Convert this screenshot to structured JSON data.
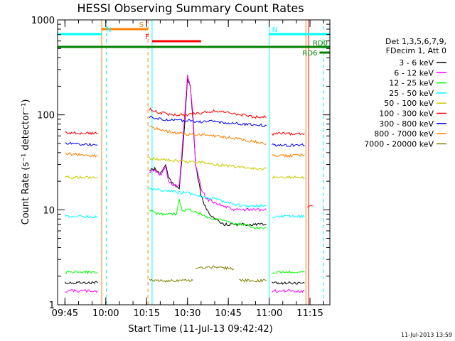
{
  "chart_data": {
    "type": "line",
    "title": "HESSI Observing Summary Count Rates",
    "xlabel": "Start Time (11-Jul-13 09:42:42)",
    "ylabel": "Count Rate (s⁻¹ detector⁻¹)",
    "yscale": "log",
    "ylim": [
      1,
      1000
    ],
    "xlim": [
      -2.7,
      97.3
    ],
    "x_units": "minutes after 09:45",
    "x_ticks": [
      {
        "x": 0,
        "label": "09:45"
      },
      {
        "x": 15,
        "label": "10:00"
      },
      {
        "x": 30,
        "label": "10:15"
      },
      {
        "x": 45,
        "label": "10:30"
      },
      {
        "x": 60,
        "label": "10:45"
      },
      {
        "x": 75,
        "label": "11:00"
      },
      {
        "x": 90,
        "label": "11:15"
      }
    ],
    "y_ticks": [
      {
        "y": 1,
        "label": "1"
      },
      {
        "y": 10,
        "label": "10"
      },
      {
        "y": 100,
        "label": "100"
      },
      {
        "y": 1000,
        "label": "1000"
      }
    ],
    "legend": {
      "position": "right",
      "header": [
        "Det 1,3,5,6,7,9,",
        "FDecim 1, Att 0"
      ]
    },
    "series": [
      {
        "name": "3 - 6 keV",
        "color": "#000000",
        "segments": [
          [
            [
              0,
              1.7
            ],
            [
              6,
              1.7
            ],
            [
              12,
              1.7
            ]
          ],
          [
            [
              31,
              26
            ],
            [
              33,
              27
            ],
            [
              35,
              24
            ],
            [
              37,
              30
            ],
            [
              38,
              22
            ],
            [
              40,
              18
            ],
            [
              42,
              17
            ],
            [
              44,
              80
            ],
            [
              45,
              240
            ],
            [
              46,
              200
            ],
            [
              47,
              90
            ],
            [
              48,
              30
            ],
            [
              50,
              14
            ],
            [
              52,
              10
            ],
            [
              55,
              8
            ],
            [
              58,
              7
            ],
            [
              62,
              7
            ],
            [
              66,
              7
            ],
            [
              70,
              7
            ],
            [
              74,
              7
            ]
          ],
          [
            [
              76,
              1.7
            ],
            [
              82,
              1.7
            ],
            [
              88,
              1.7
            ]
          ]
        ]
      },
      {
        "name": "6 - 12 keV",
        "color": "#ff00ff",
        "segments": [
          [
            [
              0,
              1.4
            ],
            [
              6,
              1.4
            ],
            [
              12,
              1.4
            ]
          ],
          [
            [
              31,
              25
            ],
            [
              33,
              26
            ],
            [
              35,
              23
            ],
            [
              37,
              28
            ],
            [
              38,
              20
            ],
            [
              40,
              18
            ],
            [
              42,
              18
            ],
            [
              44,
              100
            ],
            [
              45,
              260
            ],
            [
              46,
              200
            ],
            [
              47,
              100
            ],
            [
              48,
              30
            ],
            [
              50,
              17
            ],
            [
              52,
              13
            ],
            [
              55,
              12
            ],
            [
              58,
              11
            ],
            [
              62,
              10
            ],
            [
              66,
              10
            ],
            [
              70,
              10
            ],
            [
              74,
              10
            ]
          ],
          [
            [
              76,
              1.4
            ],
            [
              82,
              1.4
            ],
            [
              88,
              1.4
            ]
          ]
        ]
      },
      {
        "name": "12 - 25 keV",
        "color": "#00ff00",
        "segments": [
          [
            [
              0,
              2.2
            ],
            [
              6,
              2.2
            ],
            [
              12,
              2.2
            ]
          ],
          [
            [
              31,
              10
            ],
            [
              34,
              9
            ],
            [
              38,
              9
            ],
            [
              41,
              9
            ],
            [
              42,
              13
            ],
            [
              43,
              10
            ],
            [
              46,
              10
            ],
            [
              50,
              9
            ],
            [
              54,
              8
            ],
            [
              58,
              8
            ],
            [
              62,
              7
            ],
            [
              66,
              7
            ],
            [
              70,
              6.5
            ],
            [
              74,
              6.5
            ]
          ],
          [
            [
              76,
              2.2
            ],
            [
              82,
              2.2
            ],
            [
              88,
              2.2
            ]
          ]
        ]
      },
      {
        "name": "25 - 50 keV",
        "color": "#00ffff",
        "segments": [
          [
            [
              0,
              8.5
            ],
            [
              6,
              8.5
            ],
            [
              12,
              8.5
            ]
          ],
          [
            [
              31,
              17
            ],
            [
              35,
              16
            ],
            [
              40,
              15.5
            ],
            [
              45,
              15
            ],
            [
              50,
              14
            ],
            [
              55,
              13
            ],
            [
              60,
              12
            ],
            [
              65,
              11
            ],
            [
              70,
              11
            ],
            [
              74,
              11
            ]
          ],
          [
            [
              76,
              8.5
            ],
            [
              82,
              8.5
            ],
            [
              88,
              8.5
            ]
          ]
        ]
      },
      {
        "name": "50 - 100 keV",
        "color": "#cccc00",
        "segments": [
          [
            [
              0,
              22
            ],
            [
              6,
              22
            ],
            [
              12,
              22
            ]
          ],
          [
            [
              31,
              35
            ],
            [
              35,
              34
            ],
            [
              40,
              33
            ],
            [
              45,
              32
            ],
            [
              50,
              32
            ],
            [
              55,
              30
            ],
            [
              60,
              29
            ],
            [
              65,
              28
            ],
            [
              70,
              27
            ],
            [
              74,
              27
            ]
          ],
          [
            [
              76,
              22
            ],
            [
              82,
              22
            ],
            [
              88,
              22
            ]
          ]
        ]
      },
      {
        "name": "100 - 300 keV",
        "color": "#ff0000",
        "segments": [
          [
            [
              0,
              65
            ],
            [
              6,
              64
            ],
            [
              12,
              64
            ]
          ],
          [
            [
              31,
              115
            ],
            [
              35,
              105
            ],
            [
              40,
              100
            ],
            [
              45,
              100
            ],
            [
              50,
              105
            ],
            [
              55,
              110
            ],
            [
              60,
              105
            ],
            [
              65,
              100
            ],
            [
              70,
              95
            ],
            [
              74,
              95
            ]
          ],
          [
            [
              76,
              63
            ],
            [
              82,
              63
            ],
            [
              88,
              64
            ]
          ],
          [
            [
              89,
              11
            ],
            [
              91,
              11
            ]
          ]
        ]
      },
      {
        "name": "300 - 800 keV",
        "color": "#0000ff",
        "segments": [
          [
            [
              0,
              50
            ],
            [
              6,
              49
            ],
            [
              12,
              48
            ]
          ],
          [
            [
              31,
              95
            ],
            [
              35,
              90
            ],
            [
              40,
              88
            ],
            [
              45,
              87
            ],
            [
              50,
              85
            ],
            [
              55,
              85
            ],
            [
              60,
              82
            ],
            [
              65,
              80
            ],
            [
              70,
              78
            ],
            [
              74,
              77
            ]
          ],
          [
            [
              76,
              48
            ],
            [
              82,
              48
            ],
            [
              88,
              48
            ]
          ]
        ]
      },
      {
        "name": "800 - 7000 keV",
        "color": "#ff8000",
        "segments": [
          [
            [
              0,
              39
            ],
            [
              6,
              38
            ],
            [
              12,
              37
            ]
          ],
          [
            [
              31,
              75
            ],
            [
              35,
              70
            ],
            [
              40,
              65
            ],
            [
              45,
              62
            ],
            [
              50,
              62
            ],
            [
              55,
              60
            ],
            [
              60,
              58
            ],
            [
              65,
              55
            ],
            [
              70,
              52
            ],
            [
              74,
              50
            ]
          ],
          [
            [
              76,
              37
            ],
            [
              82,
              37
            ],
            [
              88,
              38
            ]
          ]
        ]
      },
      {
        "name": "7000 - 20000 keV",
        "color": "#808000",
        "segments": [
          [
            [
              31,
              1.8
            ],
            [
              40,
              1.8
            ],
            [
              47,
              1.8
            ]
          ],
          [
            [
              48,
              2.4
            ],
            [
              55,
              2.5
            ],
            [
              62,
              2.4
            ]
          ],
          [
            [
              64,
              1.8
            ],
            [
              70,
              1.8
            ],
            [
              74,
              1.8
            ]
          ]
        ]
      }
    ],
    "flag_bars": [
      {
        "label": "S",
        "color": "#ff8000",
        "x0": 13.5,
        "x1": 30.5
      },
      {
        "label": "N",
        "color": "#00ffff",
        "x0": -2.7,
        "x1": 13.5
      },
      {
        "label": "N",
        "color": "#00ffff",
        "x0": 75,
        "x1": 97.3
      },
      {
        "label": "F",
        "color": "#ff0000",
        "x0": 32,
        "x1": 50
      },
      {
        "label": "RD0",
        "color": "#008000",
        "x0": -2.7,
        "x1": 97.3
      },
      {
        "label": "RD6",
        "color": "#008000",
        "x0": 93.5,
        "x1": 97.3
      }
    ],
    "vertical_markers": [
      {
        "x": 13.5,
        "color": "#ff8000",
        "style": "solid"
      },
      {
        "x": 15.2,
        "color": "#00ffff",
        "style": "dashed"
      },
      {
        "x": 30.5,
        "color": "#ff8000",
        "style": "dashed"
      },
      {
        "x": 32,
        "color": "#00ffff",
        "style": "solid"
      },
      {
        "x": 75,
        "color": "#00ffff",
        "style": "solid"
      },
      {
        "x": 88.5,
        "color": "#ff8000",
        "style": "solid"
      },
      {
        "x": 89.5,
        "color": "#ff0000",
        "style": "solid"
      },
      {
        "x": 95,
        "color": "#00ffff",
        "style": "dashed"
      }
    ],
    "stamp": "11-Jul-2013 13:59"
  }
}
